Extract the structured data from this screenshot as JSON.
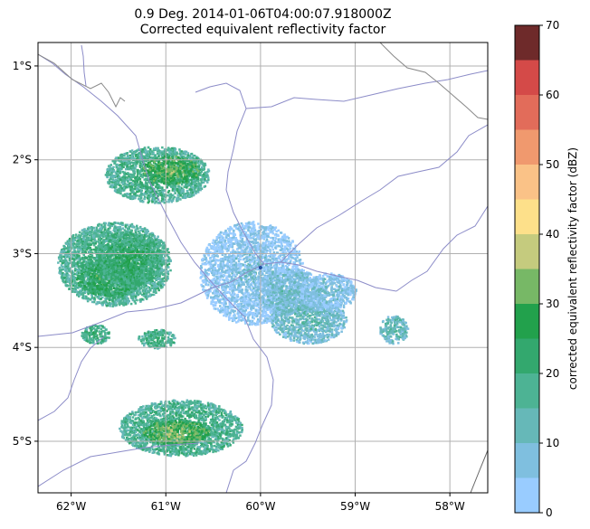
{
  "title_line1": "0.9 Deg. 2014-01-06T04:00:07.918000Z",
  "title_line2": "Corrected equivalent reflectivity factor",
  "map": {
    "lon_range": [
      -62.35,
      -57.6
    ],
    "lat_range": [
      -5.55,
      -0.75
    ],
    "x_ticks": [
      {
        "value": -62,
        "label": "62°W"
      },
      {
        "value": -61,
        "label": "61°W"
      },
      {
        "value": -60,
        "label": "60°W"
      },
      {
        "value": -59,
        "label": "59°W"
      },
      {
        "value": -58,
        "label": "58°W"
      }
    ],
    "y_ticks": [
      {
        "value": -1,
        "label": "1°S"
      },
      {
        "value": -2,
        "label": "2°S"
      },
      {
        "value": -3,
        "label": "3°S"
      },
      {
        "value": -4,
        "label": "4°S"
      },
      {
        "value": -5,
        "label": "5°S"
      }
    ],
    "grid": true,
    "river_color": "#8c8cc8",
    "border_color": "#888888",
    "radar_site": {
      "lon": -60.0,
      "lat": -3.15
    },
    "echo_regions": [
      {
        "lon": -60.1,
        "lat": -3.2,
        "rlon": 0.55,
        "rlat": 0.55,
        "level": 8
      },
      {
        "lon": -59.7,
        "lat": -3.4,
        "rlon": 0.35,
        "rlat": 0.25,
        "level": 12
      },
      {
        "lon": -59.5,
        "lat": -3.7,
        "rlon": 0.4,
        "rlat": 0.25,
        "level": 14
      },
      {
        "lon": -59.3,
        "lat": -3.4,
        "rlon": 0.3,
        "rlat": 0.2,
        "level": 10
      },
      {
        "lon": -61.55,
        "lat": -3.1,
        "rlon": 0.6,
        "rlat": 0.45,
        "level": 22
      },
      {
        "lon": -61.6,
        "lat": -3.25,
        "rlon": 0.35,
        "rlat": 0.2,
        "level": 28
      },
      {
        "lon": -61.1,
        "lat": -2.15,
        "rlon": 0.55,
        "rlat": 0.3,
        "level": 22
      },
      {
        "lon": -60.95,
        "lat": -2.1,
        "rlon": 0.3,
        "rlat": 0.15,
        "level": 32
      },
      {
        "lon": -61.4,
        "lat": -3.05,
        "rlon": 0.35,
        "rlat": 0.3,
        "level": 25
      },
      {
        "lon": -61.1,
        "lat": -3.9,
        "rlon": 0.2,
        "rlat": 0.1,
        "level": 22
      },
      {
        "lon": -61.75,
        "lat": -3.85,
        "rlon": 0.15,
        "rlat": 0.1,
        "level": 24
      },
      {
        "lon": -60.85,
        "lat": -4.85,
        "rlon": 0.65,
        "rlat": 0.3,
        "level": 22
      },
      {
        "lon": -60.9,
        "lat": -4.9,
        "rlon": 0.35,
        "rlat": 0.13,
        "level": 34
      },
      {
        "lon": -58.6,
        "lat": -3.8,
        "rlon": 0.15,
        "rlat": 0.15,
        "level": 16
      }
    ]
  },
  "colorbar": {
    "label": "corrected equivalent reflectivity factor (dBZ)",
    "min": 0,
    "max": 70,
    "step": 5,
    "tick_values": [
      0,
      10,
      20,
      30,
      40,
      50,
      60,
      70
    ],
    "colors": [
      "#99ccff",
      "#7fbfdf",
      "#66b8b8",
      "#4db394",
      "#33a86e",
      "#22a14c",
      "#77b866",
      "#c5cb7e",
      "#fde08a",
      "#fac287",
      "#f0996e",
      "#e26c5a",
      "#d44a48",
      "#6e2a2a",
      "#111111"
    ]
  }
}
